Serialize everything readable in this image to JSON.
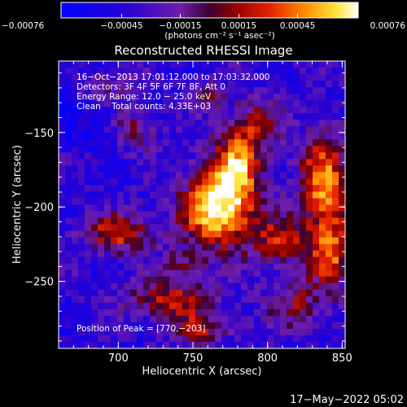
{
  "chart_data": {
    "type": "heatmap",
    "title": "Reconstructed RHESSI Image",
    "xlabel": "Heliocentric X (arcsec)",
    "ylabel": "Heliocentric Y (arcsec)",
    "xlim": [
      660,
      852
    ],
    "ylim": [
      -295,
      -102
    ],
    "x_ticks": [
      700,
      750,
      800,
      850
    ],
    "x_tick_labels": [
      "700",
      "750",
      "800",
      "850"
    ],
    "y_ticks": [
      -150,
      -200,
      -250
    ],
    "y_tick_labels": [
      "−150",
      "−200",
      "−250"
    ],
    "colorbar": {
      "range": [
        -0.00076,
        0.00076
      ],
      "ticks": [
        -0.00076,
        -0.00045,
        -0.00015,
        0.00015,
        0.00045,
        0.00076
      ],
      "tick_labels": [
        "−0.00076",
        "−0.00045",
        "−0.00015",
        "0.00015",
        "0.00045",
        "0.00076"
      ],
      "unit_label": "(photons cm⁻² s⁻¹ asec⁻²)"
    },
    "annotations": [
      "16−Oct−2013 17:01:12.000 to 17:03:32.000",
      "Detectors: 3F 4F 5F 6F 7F 8F, Att 0",
      "Energy Range: 12.0 − 25.0 keV",
      "Clean    Total counts: 4.33E+03"
    ],
    "peak_label": "Position of Peak = [770,−203]",
    "peak": [
      770,
      -203
    ],
    "colormap": "rhessi-blue-purple-red-yellow",
    "sources": [
      {
        "x": 768,
        "y": -200,
        "sx": 17,
        "sy": 19,
        "a": 1.0
      },
      {
        "x": 780,
        "y": -172,
        "sx": 11,
        "sy": 14,
        "a": 0.6
      },
      {
        "x": 790,
        "y": -145,
        "sx": 13,
        "sy": 12,
        "a": 0.45
      },
      {
        "x": 838,
        "y": -185,
        "sx": 12,
        "sy": 24,
        "a": 0.75
      },
      {
        "x": 843,
        "y": -232,
        "sx": 9,
        "sy": 17,
        "a": 0.55
      },
      {
        "x": 810,
        "y": -223,
        "sx": 14,
        "sy": 11,
        "a": 0.5
      },
      {
        "x": 700,
        "y": -218,
        "sx": 17,
        "sy": 10,
        "a": 0.55
      },
      {
        "x": 735,
        "y": -262,
        "sx": 22,
        "sy": 9,
        "a": 0.5
      },
      {
        "x": 712,
        "y": -148,
        "sx": 11,
        "sy": 9,
        "a": 0.35
      },
      {
        "x": 692,
        "y": -118,
        "sx": 13,
        "sy": 8,
        "a": 0.35
      },
      {
        "x": 755,
        "y": -282,
        "sx": 16,
        "sy": 7,
        "a": 0.45
      },
      {
        "x": 820,
        "y": -265,
        "sx": 14,
        "sy": 12,
        "a": 0.4
      },
      {
        "x": 745,
        "y": -240,
        "sx": 10,
        "sy": 8,
        "a": 0.35
      },
      {
        "x": 760,
        "y": -125,
        "sx": 10,
        "sy": 7,
        "a": 0.3
      }
    ],
    "background_level": 0.22
  },
  "footer_timestamp": "17−May−2022 05:02"
}
